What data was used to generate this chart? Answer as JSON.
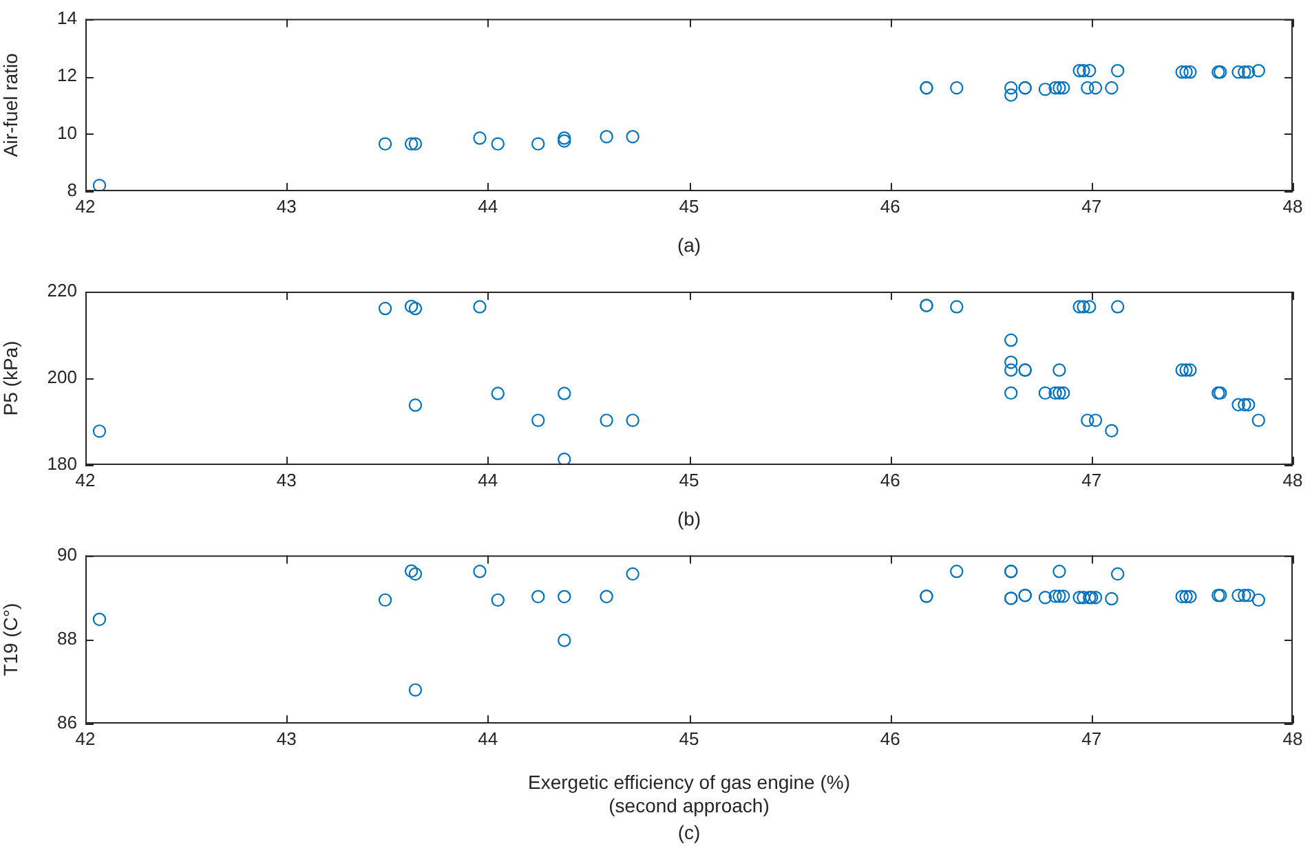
{
  "chart_data": [
    {
      "type": "scatter",
      "ylabel": "Air-fuel ratio",
      "annotations": [
        "(a)"
      ],
      "marker": "circle",
      "x": [
        42.07,
        43.49,
        43.62,
        43.64,
        43.96,
        44.05,
        44.25,
        44.38,
        44.38,
        44.59,
        44.72,
        46.18,
        46.18,
        46.33,
        46.6,
        46.6,
        46.67,
        46.67,
        46.77,
        46.82,
        46.84,
        46.86,
        46.94,
        46.96,
        46.99,
        46.98,
        47.02,
        47.1,
        47.13,
        47.45,
        47.47,
        47.49,
        47.63,
        47.64,
        47.73,
        47.76,
        47.78,
        47.83
      ],
      "series": [
        {
          "color": "#0072bd",
          "values": [
            8.2,
            9.65,
            9.65,
            9.65,
            9.85,
            9.65,
            9.65,
            9.85,
            9.75,
            9.9,
            9.9,
            11.6,
            11.6,
            11.6,
            11.6,
            11.35,
            11.6,
            11.6,
            11.55,
            11.6,
            11.6,
            11.6,
            12.2,
            12.2,
            12.2,
            11.6,
            11.6,
            11.6,
            12.2,
            12.15,
            12.15,
            12.15,
            12.15,
            12.15,
            12.15,
            12.15,
            12.15,
            12.2
          ]
        }
      ],
      "xlim": [
        42,
        48
      ],
      "xticks": [
        42,
        43,
        44,
        45,
        46,
        47,
        48
      ],
      "ylim": [
        8,
        14
      ],
      "yticks": [
        8,
        10,
        12,
        14
      ]
    },
    {
      "type": "scatter",
      "ylabel": "P5 (kPa)",
      "annotations": [
        "(b)"
      ],
      "marker": "circle",
      "x": [
        42.07,
        43.49,
        43.62,
        43.64,
        43.64,
        43.96,
        44.05,
        44.25,
        44.38,
        44.38,
        44.59,
        44.72,
        46.18,
        46.18,
        46.33,
        46.6,
        46.6,
        46.6,
        46.6,
        46.67,
        46.67,
        46.77,
        46.82,
        46.84,
        46.86,
        46.84,
        46.94,
        46.96,
        46.99,
        46.98,
        47.02,
        47.1,
        47.13,
        47.45,
        47.47,
        47.49,
        47.63,
        47.64,
        47.73,
        47.76,
        47.78,
        47.83
      ],
      "series": [
        {
          "color": "#0072bd",
          "values": [
            187.8,
            216.1,
            216.6,
            216.1,
            193.8,
            216.5,
            196.5,
            190.3,
            196.5,
            181.3,
            190.3,
            190.3,
            216.8,
            216.8,
            216.5,
            208.8,
            203.7,
            201.9,
            196.6,
            201.9,
            201.9,
            196.6,
            196.6,
            196.6,
            196.6,
            201.9,
            216.5,
            216.5,
            216.5,
            190.3,
            190.3,
            187.9,
            216.5,
            201.9,
            201.9,
            201.9,
            196.6,
            196.6,
            193.9,
            193.9,
            193.9,
            190.3
          ]
        }
      ],
      "xlim": [
        42,
        48
      ],
      "xticks": [
        42,
        43,
        44,
        45,
        46,
        47,
        48
      ],
      "ylim": [
        180,
        220
      ],
      "yticks": [
        180,
        200,
        220
      ]
    },
    {
      "type": "scatter",
      "ylabel": "T19 (C°)",
      "xlabel": "Exergetic efficiency of gas engine (%)\n(second approach)",
      "annotations": [
        "(c)"
      ],
      "marker": "circle",
      "x": [
        42.07,
        43.49,
        43.62,
        43.64,
        43.64,
        43.96,
        44.05,
        44.25,
        44.38,
        44.38,
        44.59,
        44.72,
        46.18,
        46.18,
        46.33,
        46.6,
        46.6,
        46.6,
        46.6,
        46.67,
        46.67,
        46.77,
        46.82,
        46.84,
        46.86,
        46.84,
        46.94,
        46.96,
        46.99,
        47.0,
        47.02,
        47.1,
        47.13,
        47.45,
        47.47,
        47.49,
        47.63,
        47.64,
        47.73,
        47.76,
        47.78,
        47.83
      ],
      "series": [
        {
          "color": "#0072bd",
          "values": [
            88.48,
            88.94,
            89.63,
            89.56,
            86.8,
            89.62,
            88.94,
            89.02,
            89.02,
            87.98,
            89.02,
            89.56,
            89.03,
            89.03,
            89.62,
            89.62,
            89.62,
            88.98,
            88.98,
            89.05,
            89.05,
            89.0,
            89.03,
            89.03,
            89.03,
            89.62,
            89.0,
            89.0,
            89.0,
            89.0,
            89.0,
            88.97,
            89.56,
            89.02,
            89.02,
            89.02,
            89.05,
            89.05,
            89.05,
            89.05,
            89.05,
            88.94
          ]
        }
      ],
      "xlim": [
        42,
        48
      ],
      "xticks": [
        42,
        43,
        44,
        45,
        46,
        47,
        48
      ],
      "ylim": [
        86,
        90
      ],
      "yticks": [
        86,
        88,
        90
      ]
    }
  ]
}
